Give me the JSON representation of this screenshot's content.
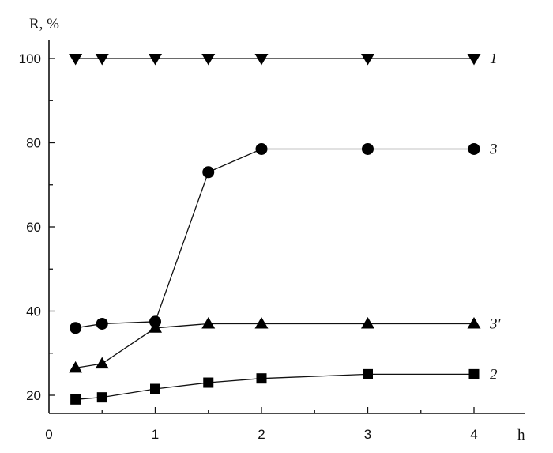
{
  "chart_data": {
    "type": "line",
    "xlabel": "h",
    "ylabel": "R, %",
    "xlim": [
      0,
      4.4
    ],
    "ylim": [
      16.5,
      100
    ],
    "xticks": [
      0,
      1,
      2,
      3,
      4
    ],
    "yticks": [
      20,
      40,
      60,
      80,
      100
    ],
    "grid": false,
    "legend": "none",
    "series": [
      {
        "name": "1",
        "marker": "triangle-down",
        "x": [
          0.25,
          0.5,
          1,
          1.5,
          2,
          3,
          4
        ],
        "y": [
          100,
          100,
          100,
          100,
          100,
          100,
          100
        ]
      },
      {
        "name": "3",
        "marker": "circle",
        "x": [
          0.25,
          0.5,
          1,
          1.5,
          2,
          3,
          4
        ],
        "y": [
          36,
          37,
          37.5,
          73,
          78.5,
          78.5,
          78.5
        ]
      },
      {
        "name": "3′",
        "marker": "triangle-up",
        "x": [
          0.25,
          0.5,
          1,
          1.5,
          2,
          3,
          4
        ],
        "y": [
          26.5,
          27.5,
          36,
          37,
          37,
          37,
          37
        ]
      },
      {
        "name": "2",
        "marker": "square",
        "x": [
          0.25,
          0.5,
          1,
          1.5,
          2,
          3,
          4
        ],
        "y": [
          19,
          19.5,
          21.5,
          23,
          24,
          25,
          25
        ]
      }
    ]
  }
}
